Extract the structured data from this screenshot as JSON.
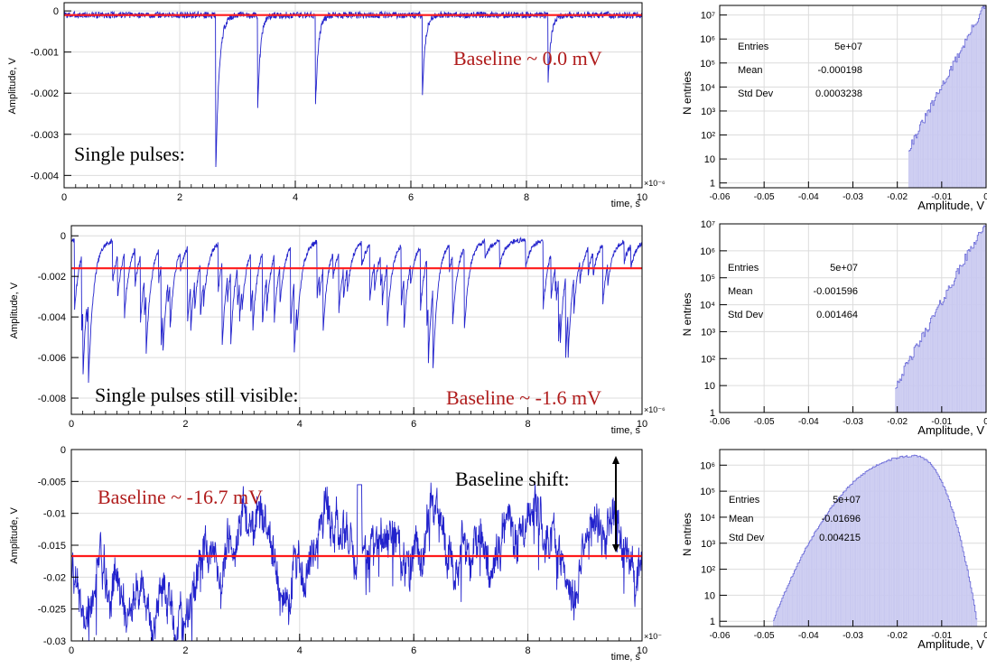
{
  "colors": {
    "trace": "#2222cc",
    "baseline": "#ff1a1a",
    "annotation_red": "#b01c1c",
    "hist_fill": "#c9c9f0",
    "hist_line": "#6a6ad8",
    "grid": "#dcdcdc",
    "text": "#000000"
  },
  "chart_data": [
    {
      "type": "line",
      "panel": "waveform-1",
      "xlabel": "time, s",
      "ylabel": "Amplitude, V",
      "x_exponent": "×10⁻⁶",
      "xlim": [
        0,
        10
      ],
      "ylim": [
        -0.0043,
        0.0002
      ],
      "x_ticks": [
        0,
        2,
        4,
        6,
        8,
        10
      ],
      "x_tick_labels": [
        "0",
        "2",
        "4",
        "6",
        "8",
        "10"
      ],
      "y_ticks": [
        0,
        -0.001,
        -0.002,
        -0.003,
        -0.004
      ],
      "y_tick_labels": [
        "0",
        "-0.001",
        "-0.002",
        "-0.003",
        "-0.004"
      ],
      "baseline": -0.0001,
      "noise_amplitude": 8e-05,
      "pulses": [
        {
          "t": 2.62,
          "depth": -0.0041,
          "decay": 0.06
        },
        {
          "t": 3.35,
          "depth": -0.0022,
          "decay": 0.05
        },
        {
          "t": 4.35,
          "depth": -0.0022,
          "decay": 0.05
        },
        {
          "t": 6.2,
          "depth": -0.0019,
          "decay": 0.05
        },
        {
          "t": 8.37,
          "depth": -0.0018,
          "decay": 0.05
        }
      ],
      "annotations": {
        "left": "Single pulses:",
        "right": "Baseline ~ 0.0 mV"
      }
    },
    {
      "type": "line",
      "panel": "waveform-2",
      "xlabel": "time, s",
      "ylabel": "Amplitude, V",
      "x_exponent": "×10⁻⁶",
      "xlim": [
        0,
        10
      ],
      "ylim": [
        -0.0088,
        0.0005
      ],
      "x_ticks": [
        0,
        2,
        4,
        6,
        8,
        10
      ],
      "x_tick_labels": [
        "0",
        "2",
        "4",
        "6",
        "8",
        "10"
      ],
      "y_ticks": [
        0,
        -0.002,
        -0.004,
        -0.006,
        -0.008
      ],
      "y_tick_labels": [
        "0",
        "-0.002",
        "-0.004",
        "-0.006",
        "-0.008"
      ],
      "baseline": -0.0016,
      "noise_amplitude": 0.00012,
      "pulse_rate": 9,
      "pulse_depth_range": [
        -0.0075,
        -0.0018
      ],
      "seed": 7,
      "annotations": {
        "left": "Single pulses still visible:",
        "right": "Baseline ~ -1.6 mV"
      }
    },
    {
      "type": "line",
      "panel": "waveform-3",
      "xlabel": "time, s",
      "ylabel": "Amplitude, V",
      "x_exponent": "×10⁻",
      "xlim": [
        0,
        10
      ],
      "ylim": [
        -0.03,
        0
      ],
      "x_ticks": [
        0,
        2,
        4,
        6,
        8,
        10
      ],
      "x_tick_labels": [
        "0",
        "2",
        "4",
        "6",
        "8",
        "10"
      ],
      "y_ticks": [
        0,
        -0.005,
        -0.01,
        -0.015,
        -0.02,
        -0.025,
        -0.03
      ],
      "y_tick_labels": [
        "0",
        "-0.005",
        "-0.01",
        "-0.015",
        "-0.02",
        "-0.025",
        "-0.03"
      ],
      "baseline": -0.0167,
      "noise_amplitude": 0.0045,
      "seed": 19,
      "annotations": {
        "left": "Baseline ~  -16.7 mV",
        "right": "Baseline shift:"
      }
    },
    {
      "type": "bar",
      "panel": "histogram-1",
      "xlabel": "Amplitude, V",
      "ylabel": "N entries",
      "log_y": true,
      "xlim": [
        -0.06,
        0
      ],
      "ylim_log10": [
        -0.2,
        7.4
      ],
      "x_ticks": [
        -0.06,
        -0.05,
        -0.04,
        -0.03,
        -0.02,
        -0.01,
        0
      ],
      "x_tick_labels": [
        "-0.06",
        "-0.05",
        "-0.04",
        "-0.03",
        "-0.02",
        "-0.01",
        "0"
      ],
      "y_tick_labels": [
        "1",
        "10",
        "10²",
        "10³",
        "10⁴",
        "10⁵",
        "10⁶",
        "10⁷"
      ],
      "bins_profile": {
        "kind": "tail",
        "peak_x": -0.0003,
        "peak_log10": 7.4,
        "end_x": -0.0175,
        "slope": 350
      },
      "stats": {
        "Entries": "5e+07",
        "Mean": "-0.000198",
        "Std Dev": "0.0003238"
      }
    },
    {
      "type": "bar",
      "panel": "histogram-2",
      "xlabel": "Amplitude, V",
      "ylabel": "N entries",
      "log_y": true,
      "xlim": [
        -0.06,
        0
      ],
      "ylim_log10": [
        0,
        7
      ],
      "x_ticks": [
        -0.06,
        -0.05,
        -0.04,
        -0.03,
        -0.02,
        -0.01,
        0
      ],
      "x_tick_labels": [
        "-0.06",
        "-0.05",
        "-0.04",
        "-0.03",
        "-0.02",
        "-0.01",
        "0"
      ],
      "y_tick_labels": [
        "1",
        "10",
        "10²",
        "10³",
        "10⁴",
        "10⁵",
        "10⁶",
        "10⁷"
      ],
      "bins_profile": {
        "kind": "tail",
        "peak_x": -0.001,
        "peak_log10": 6.8,
        "end_x": -0.0205,
        "slope": 300
      },
      "stats": {
        "Entries": "5e+07",
        "Mean": "-0.001596",
        "Std Dev": "0.001464"
      }
    },
    {
      "type": "bar",
      "panel": "histogram-3",
      "xlabel": "Amplitude, V",
      "ylabel": "N entries",
      "log_y": true,
      "xlim": [
        -0.06,
        0
      ],
      "ylim_log10": [
        -0.2,
        6.6
      ],
      "x_ticks": [
        -0.06,
        -0.05,
        -0.04,
        -0.03,
        -0.02,
        -0.01,
        0
      ],
      "x_tick_labels": [
        "-0.06",
        "-0.05",
        "-0.04",
        "-0.03",
        "-0.02",
        "-0.01",
        "0"
      ],
      "y_tick_labels": [
        "1",
        "10",
        "10²",
        "10³",
        "10⁴",
        "10⁵",
        "10⁶"
      ],
      "bins_profile": {
        "kind": "bell",
        "peak_x": -0.016,
        "peak_log10": 6.35,
        "left_x": -0.048,
        "right_x": -0.002
      },
      "stats": {
        "Entries": "5e+07",
        "Mean": "-0.01696",
        "Std Dev": "0.004215"
      }
    }
  ]
}
